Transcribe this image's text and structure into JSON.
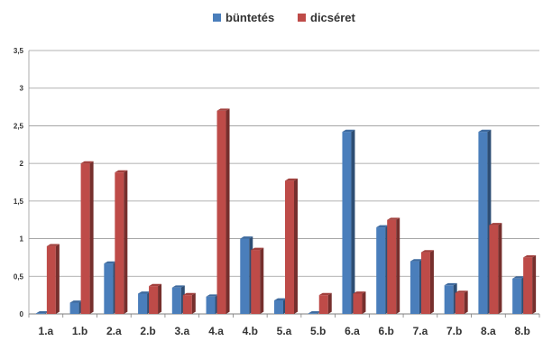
{
  "chart_data": {
    "type": "bar",
    "categories": [
      "1.a",
      "1.b",
      "2.a",
      "2.b",
      "3.a",
      "4.a",
      "4.b",
      "5.a",
      "5.b",
      "6.a",
      "6.b",
      "7.a",
      "7.b",
      "8.a",
      "8.b"
    ],
    "series": [
      {
        "name": "büntetés",
        "color": "#4a7ebb",
        "values": [
          0.0,
          0.15,
          0.67,
          0.27,
          0.35,
          0.23,
          1.0,
          0.18,
          0.0,
          2.42,
          1.15,
          0.7,
          0.38,
          2.42,
          0.47
        ]
      },
      {
        "name": "dicséret",
        "color": "#be4b48",
        "values": [
          0.9,
          2.0,
          1.88,
          0.37,
          0.25,
          2.7,
          0.85,
          1.77,
          0.25,
          0.27,
          1.25,
          0.82,
          0.28,
          1.18,
          0.75
        ]
      }
    ],
    "y_ticks": [
      "0",
      "0,5",
      "1",
      "1,5",
      "2",
      "2,5",
      "3",
      "3,5"
    ],
    "ylim": [
      0,
      3.5
    ],
    "grid": true,
    "legend_position": "top-center"
  }
}
